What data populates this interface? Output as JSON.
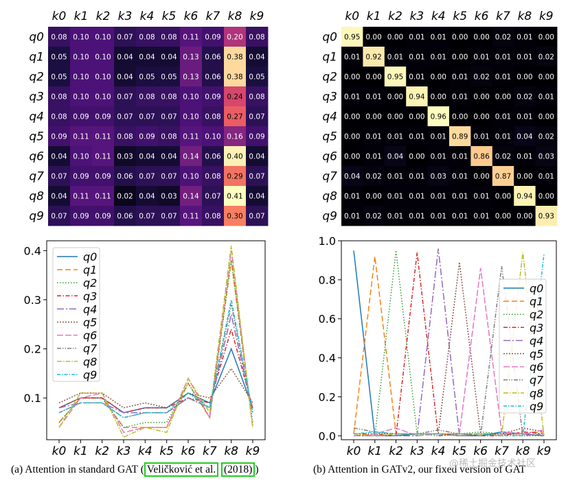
{
  "chart_data": [
    {
      "type": "heatmap",
      "x_labels": [
        "k0",
        "k1",
        "k2",
        "k3",
        "k4",
        "k5",
        "k6",
        "k7",
        "k8",
        "k9"
      ],
      "y_labels": [
        "q0",
        "q1",
        "q2",
        "q3",
        "q4",
        "q5",
        "q6",
        "q7",
        "q8",
        "q9"
      ],
      "values": [
        [
          0.08,
          0.1,
          0.1,
          0.07,
          0.08,
          0.08,
          0.11,
          0.09,
          0.2,
          0.08
        ],
        [
          0.05,
          0.1,
          0.1,
          0.04,
          0.04,
          0.04,
          0.13,
          0.06,
          0.38,
          0.04
        ],
        [
          0.05,
          0.1,
          0.1,
          0.04,
          0.05,
          0.05,
          0.13,
          0.06,
          0.38,
          0.05
        ],
        [
          0.08,
          0.1,
          0.1,
          0.07,
          0.08,
          0.08,
          0.1,
          0.09,
          0.24,
          0.08
        ],
        [
          0.08,
          0.09,
          0.09,
          0.07,
          0.07,
          0.07,
          0.1,
          0.08,
          0.27,
          0.07
        ],
        [
          0.09,
          0.11,
          0.11,
          0.08,
          0.09,
          0.08,
          0.11,
          0.1,
          0.16,
          0.09
        ],
        [
          0.04,
          0.1,
          0.11,
          0.03,
          0.04,
          0.04,
          0.14,
          0.06,
          0.4,
          0.04
        ],
        [
          0.07,
          0.09,
          0.09,
          0.06,
          0.07,
          0.07,
          0.1,
          0.08,
          0.29,
          0.07
        ],
        [
          0.04,
          0.11,
          0.11,
          0.02,
          0.04,
          0.03,
          0.14,
          0.07,
          0.41,
          0.04
        ],
        [
          0.07,
          0.09,
          0.09,
          0.06,
          0.07,
          0.07,
          0.11,
          0.08,
          0.3,
          0.07
        ]
      ],
      "value_range": [
        0,
        0.41
      ]
    },
    {
      "type": "heatmap",
      "x_labels": [
        "k0",
        "k1",
        "k2",
        "k3",
        "k4",
        "k5",
        "k6",
        "k7",
        "k8",
        "k9"
      ],
      "y_labels": [
        "q0",
        "q1",
        "q2",
        "q3",
        "q4",
        "q5",
        "q6",
        "q7",
        "q8",
        "q9"
      ],
      "values": [
        [
          0.95,
          0.0,
          0.0,
          0.01,
          0.01,
          0.0,
          0.0,
          0.02,
          0.01,
          0.0
        ],
        [
          0.01,
          0.92,
          0.01,
          0.01,
          0.01,
          0.0,
          0.01,
          0.01,
          0.01,
          0.02
        ],
        [
          0.0,
          0.0,
          0.95,
          0.01,
          0.0,
          0.01,
          0.02,
          0.01,
          0.0,
          0.0
        ],
        [
          0.01,
          0.01,
          0.0,
          0.94,
          0.0,
          0.01,
          0.0,
          0.0,
          0.02,
          0.01
        ],
        [
          0.0,
          0.0,
          0.0,
          0.0,
          0.96,
          0.0,
          0.0,
          0.01,
          0.01,
          0.0
        ],
        [
          0.0,
          0.01,
          0.01,
          0.01,
          0.01,
          0.89,
          0.01,
          0.01,
          0.04,
          0.02
        ],
        [
          0.0,
          0.01,
          0.04,
          0.0,
          0.01,
          0.01,
          0.86,
          0.02,
          0.01,
          0.03
        ],
        [
          0.04,
          0.02,
          0.01,
          0.01,
          0.03,
          0.01,
          0.0,
          0.87,
          0.0,
          0.01
        ],
        [
          0.01,
          0.0,
          0.01,
          0.01,
          0.01,
          0.01,
          0.01,
          0.0,
          0.94,
          0.0
        ],
        [
          0.01,
          0.02,
          0.01,
          0.01,
          0.01,
          0.01,
          0.01,
          0.0,
          0.0,
          0.93
        ]
      ],
      "value_range": [
        0,
        0.96
      ]
    },
    {
      "type": "line",
      "source": 0,
      "x": [
        "k0",
        "k1",
        "k2",
        "k3",
        "k4",
        "k5",
        "k6",
        "k7",
        "k8",
        "k9"
      ],
      "series_names": [
        "q0",
        "q1",
        "q2",
        "q3",
        "q4",
        "q5",
        "q6",
        "q7",
        "q8",
        "q9"
      ],
      "ylim": [
        0.015,
        0.42
      ],
      "yticks": [
        0.1,
        0.2,
        0.3,
        0.4
      ],
      "ytick_labels": [
        "0.1",
        "0.2",
        "0.3",
        "0.4"
      ],
      "legend": "top-left"
    },
    {
      "type": "line",
      "source": 1,
      "x": [
        "k0",
        "k1",
        "k2",
        "k3",
        "k4",
        "k5",
        "k6",
        "k7",
        "k8",
        "k9"
      ],
      "series_names": [
        "q0",
        "q1",
        "q2",
        "q3",
        "q4",
        "q5",
        "q6",
        "q7",
        "q8",
        "q9"
      ],
      "ylim": [
        -0.02,
        1.0
      ],
      "yticks": [
        0.0,
        0.2,
        0.4,
        0.6,
        0.8,
        1.0
      ],
      "ytick_labels": [
        "0.0",
        "0.2",
        "0.4",
        "0.6",
        "0.8",
        "1.0"
      ],
      "legend": "right"
    }
  ],
  "series_colors": [
    "#1f77b4",
    "#ff7f0e",
    "#2ca02c",
    "#d62728",
    "#9467bd",
    "#8c564b",
    "#e377c2",
    "#7f7f7f",
    "#bcbd22",
    "#17becf"
  ],
  "series_dashes": [
    "",
    "8,4",
    "1.5,2.5",
    "6,2.5,1.5,2.5",
    "10,3,2,3",
    "2,2",
    "9,3",
    "6,2,1.5,2,1.5,2",
    "7,2,1.5,2",
    "5,2,1.5,2"
  ],
  "captions": {
    "a_prefix": "(a) Attention in standard GAT (",
    "a_cite1": "Veličković et al.",
    "a_mid": " ",
    "a_cite2": "(2018)",
    "a_suffix": ")",
    "b": "(b) Attention in GATv2, our fixed version of GAT"
  },
  "watermark": "@稀土掘金技术社区"
}
